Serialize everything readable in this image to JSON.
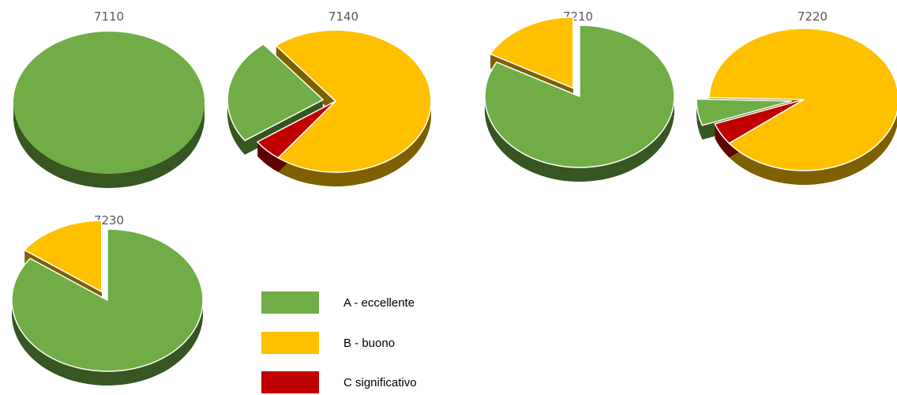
{
  "chart_data": [
    {
      "type": "pie",
      "title": "7110",
      "categories": [
        "A - eccellente",
        "B - buono",
        "C significativo"
      ],
      "values": [
        100,
        0,
        0
      ]
    },
    {
      "type": "pie",
      "title": "7140",
      "categories": [
        "A - eccellente",
        "B - buono",
        "C significativo"
      ],
      "values": [
        24,
        71,
        5
      ]
    },
    {
      "type": "pie",
      "title": "7210",
      "categories": [
        "A - eccellente",
        "B - buono",
        "C significativo"
      ],
      "values": [
        83,
        17,
        0
      ]
    },
    {
      "type": "pie",
      "title": "7220",
      "categories": [
        "A - eccellente",
        "B - buono",
        "C significativo"
      ],
      "values": [
        6,
        89,
        5
      ]
    },
    {
      "type": "pie",
      "title": "7230",
      "categories": [
        "A - eccellente",
        "B - buono",
        "C significativo"
      ],
      "values": [
        85,
        15,
        0
      ]
    }
  ],
  "legend": {
    "items": [
      {
        "label": "A - eccellente",
        "color": "#70ad47"
      },
      {
        "label": "B - buono",
        "color": "#ffc000"
      },
      {
        "label": "C significativo",
        "color": "#c00000"
      }
    ]
  },
  "colors": {
    "A": "#70ad47",
    "B": "#ffc000",
    "C": "#c00000",
    "title": "#595959"
  }
}
